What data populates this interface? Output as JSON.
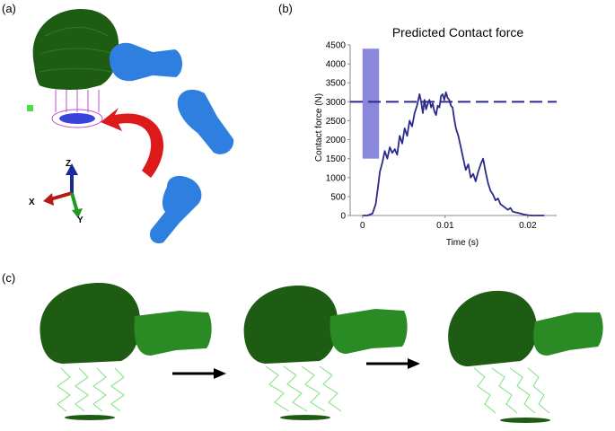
{
  "panel_labels": {
    "a": "(a)",
    "b": "(b)",
    "c": "(c)"
  },
  "panel_a": {
    "axis_labels": {
      "z": "Z",
      "x": "X",
      "y": "Y"
    }
  },
  "colors": {
    "head": "#1e5c14",
    "fist": "#2f7fe0",
    "spring": "#7ee07a",
    "coil": "#c050d0",
    "arrow": "#dd1a1a",
    "line": "#2b2b8c",
    "band": "#8a88dc"
  },
  "chart_data": {
    "type": "line",
    "title": "Predicted Contact force",
    "xlabel": "Time (s)",
    "ylabel": "Contact force (N)",
    "xlim": [
      -0.0015,
      0.0235
    ],
    "ylim": [
      0,
      4500
    ],
    "xticks": [
      0,
      0.01,
      0.02
    ],
    "xtick_labels": [
      "0",
      "0.01",
      "0.02"
    ],
    "yticks": [
      0,
      500,
      1000,
      1500,
      2000,
      2500,
      3000,
      3500,
      4000,
      4500
    ],
    "ytick_labels": [
      "0",
      "500",
      "1000",
      "1500",
      "2000",
      "2500",
      "3000",
      "3500",
      "4000",
      "4500"
    ],
    "grid": false,
    "shaded_band": {
      "x": [
        0,
        0.002
      ],
      "y": [
        1500,
        4400
      ]
    },
    "threshold": {
      "y": 3000,
      "style": "dashed"
    },
    "series": [
      {
        "x": [
          0,
          0.0006,
          0.0012,
          0.0016,
          0.0019,
          0.0021,
          0.0024,
          0.0027,
          0.003,
          0.0033,
          0.0036,
          0.0039,
          0.0042,
          0.0045,
          0.0048,
          0.0051,
          0.0054,
          0.0057,
          0.006,
          0.0063,
          0.0066,
          0.0069,
          0.0071,
          0.0073,
          0.0075,
          0.0077,
          0.0079,
          0.0081,
          0.0083,
          0.0085,
          0.0087,
          0.0089,
          0.0091,
          0.0093,
          0.0095,
          0.0097,
          0.0099,
          0.0101,
          0.0103,
          0.0105,
          0.0107,
          0.0109,
          0.0111,
          0.0113,
          0.0116,
          0.0119,
          0.0122,
          0.0125,
          0.0128,
          0.0131,
          0.0134,
          0.0137,
          0.014,
          0.0143,
          0.0146,
          0.0149,
          0.0152,
          0.0155,
          0.0158,
          0.0161,
          0.0164,
          0.0167,
          0.017,
          0.0173,
          0.0176,
          0.0179,
          0.0182,
          0.0186,
          0.019,
          0.0195,
          0.02,
          0.0205,
          0.021,
          0.0215,
          0.022
        ],
        "y": [
          0,
          0,
          50,
          300,
          800,
          1150,
          1400,
          1700,
          1500,
          1800,
          1650,
          1750,
          1600,
          2100,
          1900,
          2300,
          2100,
          2500,
          2350,
          2700,
          2900,
          3200,
          3000,
          2700,
          3050,
          2800,
          2950,
          3050,
          2850,
          2950,
          2750,
          2650,
          2900,
          2850,
          3150,
          3200,
          3050,
          3250,
          3100,
          3050,
          2900,
          2850,
          2550,
          2300,
          2100,
          1800,
          1500,
          1200,
          1350,
          1000,
          1100,
          900,
          1150,
          1350,
          1500,
          1150,
          850,
          650,
          550,
          400,
          450,
          300,
          250,
          200,
          150,
          200,
          100,
          80,
          60,
          30,
          10,
          0,
          0,
          0,
          0
        ]
      }
    ]
  }
}
